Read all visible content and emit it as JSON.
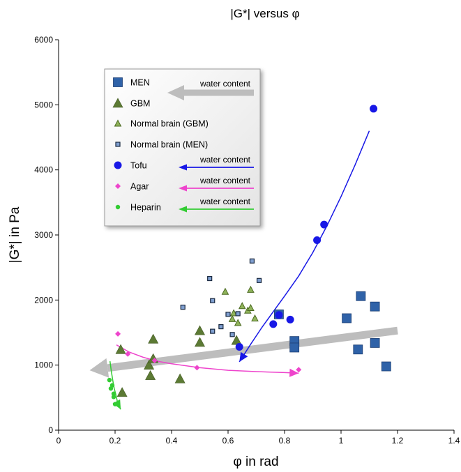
{
  "chart_data": {
    "type": "scatter",
    "title": "|G*| versus φ",
    "xlabel": "φ in rad",
    "ylabel": "|G*| in Pa",
    "xlim": [
      0,
      1.4
    ],
    "ylim": [
      0,
      6000
    ],
    "xticks": [
      "0",
      "0.2",
      "0.4",
      "0.6",
      "0.8",
      "1",
      "1.2",
      "1.4"
    ],
    "yticks": [
      "0",
      "1000",
      "2000",
      "3000",
      "4000",
      "5000",
      "6000"
    ],
    "grid": false,
    "legend_placement": "top-left",
    "series": [
      {
        "name": "MEN",
        "marker": "square",
        "color": "#2f62a8",
        "points": [
          [
            0.78,
            1780
          ],
          [
            0.835,
            1370
          ],
          [
            0.835,
            1270
          ],
          [
            1.02,
            1720
          ],
          [
            1.07,
            2060
          ],
          [
            1.12,
            1900
          ],
          [
            1.06,
            1240
          ],
          [
            1.12,
            1340
          ],
          [
            1.16,
            980
          ]
        ]
      },
      {
        "name": "GBM",
        "marker": "triangle",
        "color": "#5c7a34",
        "points": [
          [
            0.22,
            1240
          ],
          [
            0.225,
            580
          ],
          [
            0.32,
            1000
          ],
          [
            0.325,
            840
          ],
          [
            0.335,
            1400
          ],
          [
            0.335,
            1100
          ],
          [
            0.43,
            790
          ],
          [
            0.5,
            1530
          ],
          [
            0.5,
            1350
          ],
          [
            0.63,
            1380
          ]
        ]
      },
      {
        "name": "Normal brain (GBM)",
        "marker": "triangle-small",
        "color": "#8fb35a",
        "points": [
          [
            0.59,
            2130
          ],
          [
            0.615,
            1710
          ],
          [
            0.62,
            1800
          ],
          [
            0.635,
            1650
          ],
          [
            0.65,
            1910
          ],
          [
            0.67,
            1840
          ],
          [
            0.68,
            2160
          ],
          [
            0.68,
            1880
          ],
          [
            0.695,
            1720
          ]
        ]
      },
      {
        "name": "Normal brain (MEN)",
        "marker": "square-small",
        "color": "#7f9fd0",
        "points": [
          [
            0.44,
            1890
          ],
          [
            0.535,
            2330
          ],
          [
            0.545,
            1990
          ],
          [
            0.545,
            1520
          ],
          [
            0.575,
            1590
          ],
          [
            0.6,
            1780
          ],
          [
            0.615,
            1470
          ],
          [
            0.635,
            1790
          ],
          [
            0.685,
            2600
          ],
          [
            0.71,
            2300
          ],
          [
            0.78,
            1780
          ]
        ]
      },
      {
        "name": "Tofu",
        "marker": "circle",
        "color": "#1818e6",
        "points": [
          [
            0.64,
            1280
          ],
          [
            0.76,
            1630
          ],
          [
            0.78,
            1770
          ],
          [
            0.82,
            1700
          ],
          [
            0.915,
            2920
          ],
          [
            0.94,
            3160
          ],
          [
            1.115,
            4940
          ]
        ]
      },
      {
        "name": "Agar",
        "marker": "diamond",
        "color": "#ee44cc",
        "points": [
          [
            0.21,
            1480
          ],
          [
            0.245,
            1170
          ],
          [
            0.34,
            1070
          ],
          [
            0.49,
            960
          ],
          [
            0.85,
            930
          ]
        ]
      },
      {
        "name": "Heparin",
        "marker": "circle-small",
        "color": "#33cc33",
        "points": [
          [
            0.18,
            770
          ],
          [
            0.185,
            640
          ],
          [
            0.19,
            690
          ],
          [
            0.195,
            560
          ],
          [
            0.195,
            510
          ],
          [
            0.2,
            400
          ]
        ]
      }
    ],
    "fit_lines": [
      {
        "name": "Tofu",
        "color": "#1818e6",
        "arrow_end": "start",
        "points": [
          [
            0.64,
            1050
          ],
          [
            0.68,
            1320
          ],
          [
            0.72,
            1580
          ],
          [
            0.76,
            1820
          ],
          [
            0.8,
            2060
          ],
          [
            0.85,
            2370
          ],
          [
            0.9,
            2730
          ],
          [
            0.95,
            3140
          ],
          [
            1.0,
            3590
          ],
          [
            1.05,
            4080
          ],
          [
            1.1,
            4600
          ]
        ]
      },
      {
        "name": "Agar",
        "color": "#ee44cc",
        "arrow_end": "end",
        "points": [
          [
            0.205,
            1310
          ],
          [
            0.25,
            1200
          ],
          [
            0.3,
            1120
          ],
          [
            0.35,
            1060
          ],
          [
            0.4,
            1020
          ],
          [
            0.5,
            960
          ],
          [
            0.6,
            920
          ],
          [
            0.7,
            900
          ],
          [
            0.8,
            885
          ],
          [
            0.85,
            875
          ]
        ]
      },
      {
        "name": "Heparin",
        "color": "#33cc33",
        "arrow_end": "end",
        "points": [
          [
            0.182,
            1060
          ],
          [
            0.187,
            900
          ],
          [
            0.192,
            760
          ],
          [
            0.197,
            640
          ],
          [
            0.202,
            560
          ],
          [
            0.21,
            400
          ],
          [
            0.22,
            320
          ]
        ]
      }
    ],
    "trend_arrow": {
      "color": "#bdbdbd",
      "from": [
        1.2,
        1530
      ],
      "to": [
        0.11,
        920
      ]
    },
    "legend_annotations": {
      "water_content": "water content"
    }
  }
}
